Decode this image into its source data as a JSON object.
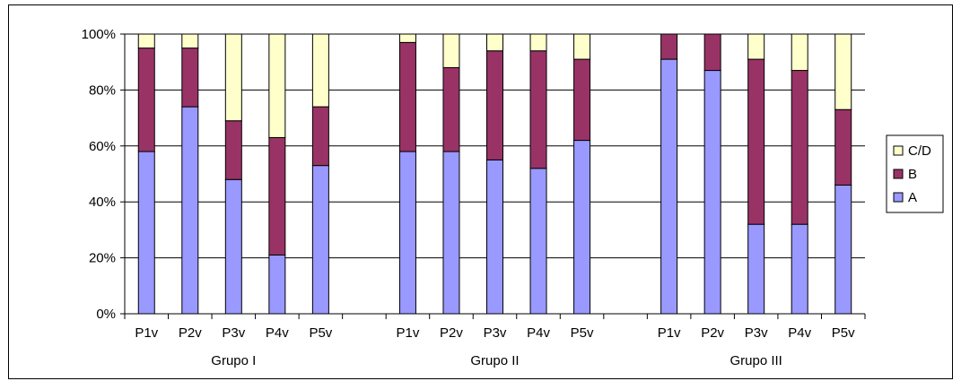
{
  "chart_data": {
    "type": "bar",
    "stacked": true,
    "percent": true,
    "groups": [
      {
        "name": "Grupo I",
        "categories": [
          "P1v",
          "P2v",
          "P3v",
          "P4v",
          "P5v"
        ]
      },
      {
        "name": "Grupo II",
        "categories": [
          "P1v",
          "P2v",
          "P3v",
          "P4v",
          "P5v"
        ]
      },
      {
        "name": "Grupo III",
        "categories": [
          "P1v",
          "P2v",
          "P3v",
          "P4v",
          "P5v"
        ]
      }
    ],
    "series": [
      {
        "name": "A",
        "color": "#9999ff",
        "values": [
          58,
          74,
          48,
          21,
          53,
          58,
          58,
          55,
          52,
          62,
          91,
          87,
          32,
          32,
          46
        ]
      },
      {
        "name": "B",
        "color": "#993366",
        "values": [
          37,
          21,
          21,
          42,
          21,
          39,
          30,
          39,
          42,
          29,
          9,
          13,
          59,
          55,
          27
        ]
      },
      {
        "name": "C/D",
        "color": "#ffffcc",
        "values": [
          5,
          5,
          31,
          37,
          26,
          3,
          12,
          6,
          6,
          9,
          0,
          0,
          9,
          13,
          27
        ]
      }
    ],
    "ylim": [
      0,
      100
    ],
    "yticks": [
      "0%",
      "20%",
      "40%",
      "60%",
      "80%",
      "100%"
    ],
    "legend_order": [
      "C/D",
      "B",
      "A"
    ],
    "legend_position": "right",
    "grid": true
  }
}
